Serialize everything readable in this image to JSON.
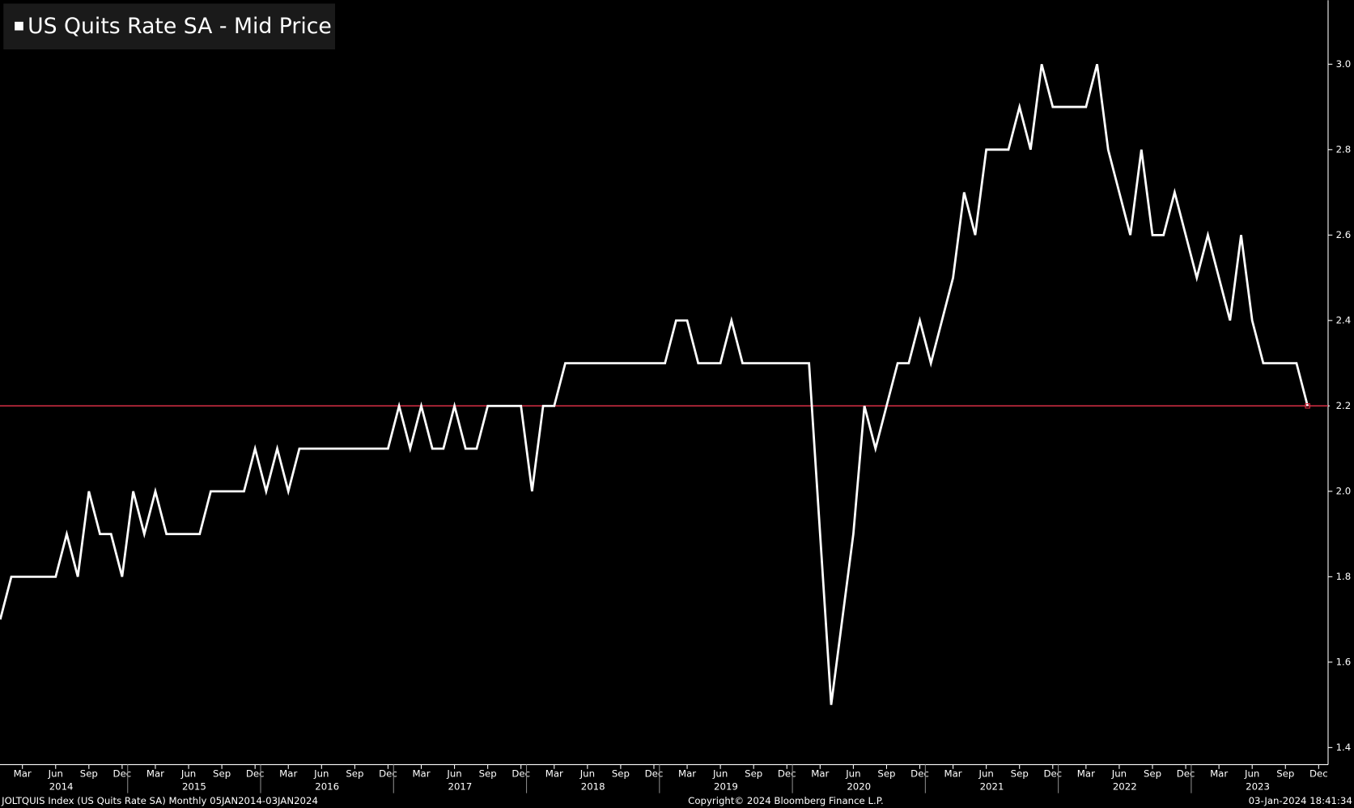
{
  "chart_data": {
    "type": "line",
    "legend": "US Quits Rate SA - Mid Price",
    "x": [
      "2014-01",
      "2014-02",
      "2014-03",
      "2014-04",
      "2014-05",
      "2014-06",
      "2014-07",
      "2014-08",
      "2014-09",
      "2014-10",
      "2014-11",
      "2014-12",
      "2015-01",
      "2015-02",
      "2015-03",
      "2015-04",
      "2015-05",
      "2015-06",
      "2015-07",
      "2015-08",
      "2015-09",
      "2015-10",
      "2015-11",
      "2015-12",
      "2016-01",
      "2016-02",
      "2016-03",
      "2016-04",
      "2016-05",
      "2016-06",
      "2016-07",
      "2016-08",
      "2016-09",
      "2016-10",
      "2016-11",
      "2016-12",
      "2017-01",
      "2017-02",
      "2017-03",
      "2017-04",
      "2017-05",
      "2017-06",
      "2017-07",
      "2017-08",
      "2017-09",
      "2017-10",
      "2017-11",
      "2017-12",
      "2018-01",
      "2018-02",
      "2018-03",
      "2018-04",
      "2018-05",
      "2018-06",
      "2018-07",
      "2018-08",
      "2018-09",
      "2018-10",
      "2018-11",
      "2018-12",
      "2019-01",
      "2019-02",
      "2019-03",
      "2019-04",
      "2019-05",
      "2019-06",
      "2019-07",
      "2019-08",
      "2019-09",
      "2019-10",
      "2019-11",
      "2019-12",
      "2020-01",
      "2020-02",
      "2020-03",
      "2020-04",
      "2020-05",
      "2020-06",
      "2020-07",
      "2020-08",
      "2020-09",
      "2020-10",
      "2020-11",
      "2020-12",
      "2021-01",
      "2021-02",
      "2021-03",
      "2021-04",
      "2021-05",
      "2021-06",
      "2021-07",
      "2021-08",
      "2021-09",
      "2021-10",
      "2021-11",
      "2021-12",
      "2022-01",
      "2022-02",
      "2022-03",
      "2022-04",
      "2022-05",
      "2022-06",
      "2022-07",
      "2022-08",
      "2022-09",
      "2022-10",
      "2022-11",
      "2022-12",
      "2023-01",
      "2023-02",
      "2023-03",
      "2023-04",
      "2023-05",
      "2023-06",
      "2023-07",
      "2023-08",
      "2023-09",
      "2023-10",
      "2023-11"
    ],
    "series": [
      {
        "name": "US Quits Rate SA - Mid Price",
        "color": "#ffffff",
        "values": [
          1.7,
          1.8,
          1.8,
          1.8,
          1.8,
          1.8,
          1.9,
          1.8,
          2.0,
          1.9,
          1.9,
          1.8,
          2.0,
          1.9,
          2.0,
          1.9,
          1.9,
          1.9,
          1.9,
          2.0,
          2.0,
          2.0,
          2.0,
          2.1,
          2.0,
          2.1,
          2.0,
          2.1,
          2.1,
          2.1,
          2.1,
          2.1,
          2.1,
          2.1,
          2.1,
          2.1,
          2.2,
          2.1,
          2.2,
          2.1,
          2.1,
          2.2,
          2.1,
          2.1,
          2.2,
          2.2,
          2.2,
          2.2,
          2.0,
          2.2,
          2.2,
          2.3,
          2.3,
          2.3,
          2.3,
          2.3,
          2.3,
          2.3,
          2.3,
          2.3,
          2.3,
          2.4,
          2.4,
          2.3,
          2.3,
          2.3,
          2.4,
          2.3,
          2.3,
          2.3,
          2.3,
          2.3,
          2.3,
          2.3,
          1.9,
          1.5,
          1.7,
          1.9,
          2.2,
          2.1,
          2.2,
          2.3,
          2.3,
          2.4,
          2.3,
          2.4,
          2.5,
          2.7,
          2.6,
          2.8,
          2.8,
          2.8,
          2.9,
          2.8,
          3.0,
          2.9,
          2.9,
          2.9,
          2.9,
          3.0,
          2.8,
          2.7,
          2.6,
          2.8,
          2.6,
          2.6,
          2.7,
          2.6,
          2.5,
          2.6,
          2.5,
          2.4,
          2.6,
          2.4,
          2.3,
          2.3,
          2.3,
          2.3,
          2.2
        ]
      }
    ],
    "last_value_label": "2.2",
    "last_value_color": "#e8334a",
    "ylim": [
      1.36,
      3.15
    ],
    "yticks": [
      1.4,
      1.6,
      1.8,
      {
        "value": 2,
        "label": "2.0"
      },
      2.2,
      2.4,
      2.6,
      2.8,
      {
        "value": 3,
        "label": "3.0"
      }
    ],
    "xticks": [
      {
        "value": "2014-03",
        "label": "Mar"
      },
      {
        "value": "2014-06",
        "label": "Jun"
      },
      {
        "value": "2014-09",
        "label": "Sep"
      },
      {
        "value": "2014-12",
        "label": "Dec"
      },
      {
        "value": "2015-03",
        "label": "Mar"
      },
      {
        "value": "2015-06",
        "label": "Jun"
      },
      {
        "value": "2015-09",
        "label": "Sep"
      },
      {
        "value": "2015-12",
        "label": "Dec"
      },
      {
        "value": "2016-03",
        "label": "Mar"
      },
      {
        "value": "2016-06",
        "label": "Jun"
      },
      {
        "value": "2016-09",
        "label": "Sep"
      },
      {
        "value": "2016-12",
        "label": "Dec"
      },
      {
        "value": "2017-03",
        "label": "Mar"
      },
      {
        "value": "2017-06",
        "label": "Jun"
      },
      {
        "value": "2017-09",
        "label": "Sep"
      },
      {
        "value": "2017-12",
        "label": "Dec"
      },
      {
        "value": "2018-03",
        "label": "Mar"
      },
      {
        "value": "2018-06",
        "label": "Jun"
      },
      {
        "value": "2018-09",
        "label": "Sep"
      },
      {
        "value": "2018-12",
        "label": "Dec"
      },
      {
        "value": "2019-03",
        "label": "Mar"
      },
      {
        "value": "2019-06",
        "label": "Jun"
      },
      {
        "value": "2019-09",
        "label": "Sep"
      },
      {
        "value": "2019-12",
        "label": "Dec"
      },
      {
        "value": "2020-03",
        "label": "Mar"
      },
      {
        "value": "2020-06",
        "label": "Jun"
      },
      {
        "value": "2020-09",
        "label": "Sep"
      },
      {
        "value": "2020-12",
        "label": "Dec"
      },
      {
        "value": "2021-03",
        "label": "Mar"
      },
      {
        "value": "2021-06",
        "label": "Jun"
      },
      {
        "value": "2021-09",
        "label": "Sep"
      },
      {
        "value": "2021-12",
        "label": "Dec"
      },
      {
        "value": "2022-03",
        "label": "Mar"
      },
      {
        "value": "2022-06",
        "label": "Jun"
      },
      {
        "value": "2022-09",
        "label": "Sep"
      },
      {
        "value": "2022-12",
        "label": "Dec"
      },
      {
        "value": "2023-03",
        "label": "Mar"
      },
      {
        "value": "2023-06",
        "label": "Jun"
      },
      {
        "value": "2023-09",
        "label": "Sep"
      },
      {
        "value": "2023-12",
        "label": "Dec"
      }
    ],
    "year_labels": [
      "2014",
      "2015",
      "2016",
      "2017",
      "2018",
      "2019",
      "2020",
      "2021",
      "2022",
      "2023"
    ],
    "footer": {
      "left": "JOLTQUIS Index (US Quits Rate SA)  Monthly 05JAN2014-03JAN2024",
      "center": "Copyright© 2024 Bloomberg Finance L.P.",
      "right": "03-Jan-2024 18:41:34"
    }
  }
}
